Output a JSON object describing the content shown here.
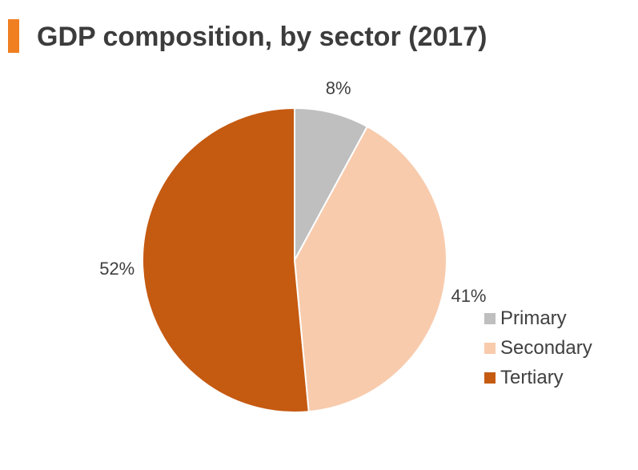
{
  "chart_data": {
    "type": "pie",
    "title": "GDP composition, by sector (2017)",
    "slices": [
      {
        "name": "Primary",
        "value": 8,
        "label": "8%",
        "color": "#bfbfbf"
      },
      {
        "name": "Secondary",
        "value": 41,
        "label": "41%",
        "color": "#f8cbad"
      },
      {
        "name": "Tertiary",
        "value": 52,
        "label": "52%",
        "color": "#c55a11"
      }
    ],
    "start_angle_deg": 0,
    "direction": "clockwise",
    "legend_placement": "right"
  }
}
